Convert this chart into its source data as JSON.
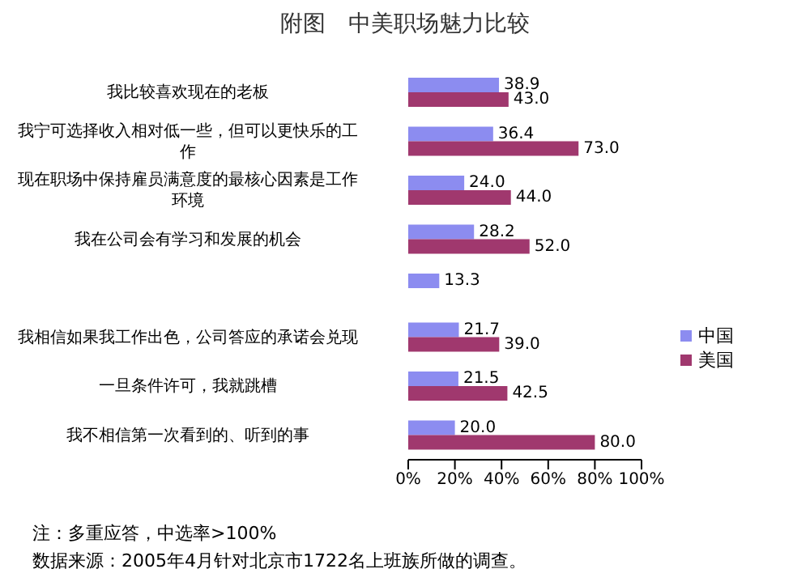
{
  "chart_data": {
    "type": "bar",
    "orientation": "horizontal",
    "title": "附图　中美职场魅力比较",
    "categories": [
      "我比较喜欢现在的老板",
      "我宁可选择收入相对低一些，但可以更快乐的工作",
      "现在职场中保持雇员满意度的最核心因素是工作环境",
      "我在公司会有学习和发展的机会",
      null,
      "我相信如果我工作出色，公司答应的承诺会兑现",
      "一旦条件许可，我就跳槽",
      "我不相信第一次看到的、听到的事"
    ],
    "series": [
      {
        "name": "中国",
        "color": "#8c8cf0",
        "values": [
          38.9,
          36.4,
          24.0,
          28.2,
          13.3,
          21.7,
          21.5,
          20.0
        ],
        "value_labels": [
          "38.9",
          "36.4",
          "24.0",
          "28.2",
          "13.3",
          "21.7",
          "21.5",
          "20.0"
        ]
      },
      {
        "name": "美国",
        "color": "#a0386e",
        "values": [
          43.0,
          73.0,
          44.0,
          52.0,
          null,
          39.0,
          42.5,
          80.0
        ],
        "value_labels": [
          "43.0",
          "73.0",
          "44.0",
          "52.0",
          null,
          "39.0",
          "42.5",
          "80.0"
        ]
      }
    ],
    "xlim": [
      0,
      100
    ],
    "xticks": [
      {
        "value": 0,
        "label": "0%"
      },
      {
        "value": 20,
        "label": "20%"
      },
      {
        "value": 40,
        "label": "40%"
      },
      {
        "value": 60,
        "label": "60%"
      },
      {
        "value": 80,
        "label": "80%"
      },
      {
        "value": 100,
        "label": "100%"
      }
    ],
    "grid": false,
    "legend": "right",
    "annotations": [
      "注：多重应答，中选率>100%",
      "数据来源：2005年4月针对北京市1722名上班族所做的调查。"
    ]
  }
}
